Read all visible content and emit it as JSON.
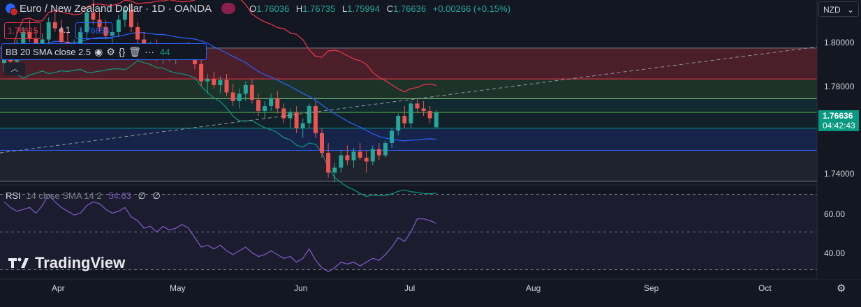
{
  "header": {
    "symbol_title": "Euro / New Zealand Dollar · 1D · OANDA",
    "open_label": "O",
    "open_value": "1.76036",
    "high_label": "H",
    "high_value": "1.76735",
    "low_label": "L",
    "low_value": "1.75994",
    "close_label": "C",
    "close_value": "1.76636",
    "change_value": "+0.00266 (+0.15%)",
    "currency": "NZD"
  },
  "trade": {
    "sell_price": "1.76615",
    "spread": "4.1",
    "buy_price": "1.76656"
  },
  "indicator_bb": {
    "label": "BB 20 SMA close 2.5",
    "value_partial": "44"
  },
  "indicator_rsi": {
    "label": "RSI",
    "params": "14 close SMA 14 2",
    "value": "54.63",
    "extra1": "∅",
    "extra2": "∅"
  },
  "price_axis": {
    "labels": [
      "1.80000",
      "1.78000",
      "1.74000"
    ],
    "current_price": "1.76636",
    "countdown": "04:42:43"
  },
  "rsi_axis": {
    "labels": [
      "60.00",
      "40.00"
    ]
  },
  "time_axis": {
    "labels": [
      "Apr",
      "May",
      "Jun",
      "Jul",
      "Aug",
      "Sep",
      "Oct"
    ]
  },
  "brand": "TradingView",
  "colors": {
    "up": "#26a69a",
    "down": "#ef5350",
    "bb_basis": "#2962ff",
    "bb_upper": "#f23645",
    "bb_lower": "#089981",
    "rsi": "#7e57c2"
  },
  "chart_data": {
    "type": "candlestick",
    "price_range": [
      1.737,
      1.812
    ],
    "rsi_range": [
      25,
      75
    ],
    "horizontal_levels": [
      1.7925,
      1.78,
      1.772,
      1.7664,
      1.76,
      1.751,
      1.7385
    ],
    "candles": [
      [
        1.7865,
        1.791,
        1.783,
        1.7885
      ],
      [
        1.7885,
        1.793,
        1.785,
        1.787
      ],
      [
        1.787,
        1.796,
        1.785,
        1.7945
      ],
      [
        1.7945,
        1.801,
        1.792,
        1.799
      ],
      [
        1.799,
        1.804,
        1.795,
        1.7965
      ],
      [
        1.7965,
        1.8,
        1.79,
        1.792
      ],
      [
        1.792,
        1.7985,
        1.7895,
        1.796
      ],
      [
        1.796,
        1.805,
        1.794,
        1.803
      ],
      [
        1.803,
        1.808,
        1.799,
        1.8005
      ],
      [
        1.8005,
        1.804,
        1.793,
        1.795
      ],
      [
        1.795,
        1.799,
        1.789,
        1.791
      ],
      [
        1.791,
        1.796,
        1.788,
        1.794
      ],
      [
        1.794,
        1.801,
        1.792,
        1.799
      ],
      [
        1.799,
        1.809,
        1.796,
        1.807
      ],
      [
        1.807,
        1.812,
        1.802,
        1.804
      ],
      [
        1.804,
        1.807,
        1.799,
        1.801
      ],
      [
        1.801,
        1.804,
        1.796,
        1.7975
      ],
      [
        1.7975,
        1.801,
        1.794,
        1.799
      ],
      [
        1.799,
        1.806,
        1.797,
        1.804
      ],
      [
        1.804,
        1.81,
        1.801,
        1.808
      ],
      [
        1.808,
        1.811,
        1.799,
        1.801
      ],
      [
        1.801,
        1.803,
        1.794,
        1.796
      ],
      [
        1.796,
        1.799,
        1.789,
        1.7905
      ],
      [
        1.7905,
        1.795,
        1.788,
        1.793
      ],
      [
        1.793,
        1.796,
        1.787,
        1.789
      ],
      [
        1.789,
        1.793,
        1.786,
        1.7915
      ],
      [
        1.7915,
        1.794,
        1.787,
        1.7885
      ],
      [
        1.7885,
        1.793,
        1.786,
        1.791
      ],
      [
        1.791,
        1.7945,
        1.788,
        1.7935
      ],
      [
        1.7935,
        1.795,
        1.788,
        1.79
      ],
      [
        1.79,
        1.793,
        1.784,
        1.786
      ],
      [
        1.786,
        1.788,
        1.777,
        1.779
      ],
      [
        1.779,
        1.782,
        1.774,
        1.78
      ],
      [
        1.78,
        1.783,
        1.776,
        1.7775
      ],
      [
        1.7775,
        1.781,
        1.774,
        1.7795
      ],
      [
        1.7795,
        1.782,
        1.773,
        1.7745
      ],
      [
        1.7745,
        1.778,
        1.769,
        1.771
      ],
      [
        1.771,
        1.776,
        1.768,
        1.774
      ],
      [
        1.774,
        1.779,
        1.771,
        1.7775
      ],
      [
        1.7775,
        1.78,
        1.77,
        1.7715
      ],
      [
        1.7715,
        1.774,
        1.765,
        1.767
      ],
      [
        1.767,
        1.771,
        1.764,
        1.769
      ],
      [
        1.769,
        1.774,
        1.767,
        1.772
      ],
      [
        1.772,
        1.775,
        1.766,
        1.768
      ],
      [
        1.768,
        1.77,
        1.762,
        1.764
      ],
      [
        1.764,
        1.768,
        1.76,
        1.7665
      ],
      [
        1.7665,
        1.769,
        1.758,
        1.76
      ],
      [
        1.76,
        1.764,
        1.756,
        1.762
      ],
      [
        1.762,
        1.77,
        1.76,
        1.769
      ],
      [
        1.769,
        1.771,
        1.756,
        1.758
      ],
      [
        1.758,
        1.76,
        1.748,
        1.75
      ],
      [
        1.75,
        1.754,
        1.74,
        1.742
      ],
      [
        1.742,
        1.746,
        1.738,
        1.744
      ],
      [
        1.744,
        1.751,
        1.742,
        1.749
      ],
      [
        1.749,
        1.753,
        1.745,
        1.747
      ],
      [
        1.747,
        1.752,
        1.744,
        1.7505
      ],
      [
        1.7505,
        1.754,
        1.747,
        1.748
      ],
      [
        1.748,
        1.751,
        1.742,
        1.7465
      ],
      [
        1.7465,
        1.753,
        1.745,
        1.7515
      ],
      [
        1.7515,
        1.754,
        1.747,
        1.749
      ],
      [
        1.749,
        1.755,
        1.748,
        1.754
      ],
      [
        1.754,
        1.76,
        1.752,
        1.759
      ],
      [
        1.759,
        1.766,
        1.757,
        1.765
      ],
      [
        1.765,
        1.769,
        1.76,
        1.762
      ],
      [
        1.762,
        1.771,
        1.76,
        1.77
      ],
      [
        1.77,
        1.772,
        1.766,
        1.768
      ],
      [
        1.768,
        1.771,
        1.765,
        1.767
      ],
      [
        1.767,
        1.769,
        1.762,
        1.764
      ],
      [
        1.7604,
        1.7674,
        1.7599,
        1.7664
      ]
    ],
    "rsi": [
      66,
      63,
      61,
      62,
      63,
      60,
      64,
      70,
      66,
      63,
      61,
      59,
      60,
      64,
      66,
      65,
      62,
      60,
      61,
      63,
      58,
      56,
      52,
      53,
      50,
      53,
      51,
      52,
      54,
      52,
      47,
      42,
      43,
      41,
      43,
      40,
      38,
      40,
      42,
      39,
      37,
      38,
      40,
      38,
      36,
      37,
      34,
      36,
      41,
      35,
      31,
      29,
      31,
      34,
      33,
      34,
      32,
      34,
      36,
      35,
      38,
      42,
      47,
      45,
      50,
      57,
      57,
      56,
      54.63
    ]
  }
}
